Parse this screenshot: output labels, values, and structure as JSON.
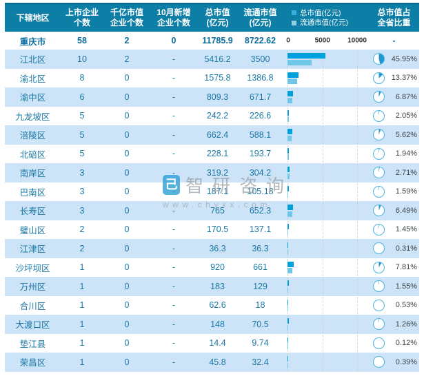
{
  "header": {
    "columns": [
      {
        "label": "下辖地区"
      },
      {
        "line1": "上市企业",
        "line2": "个数"
      },
      {
        "line1": "千亿市值",
        "line2": "企业个数"
      },
      {
        "line1": "10月新增",
        "line2": "企业个数"
      },
      {
        "line1": "总市值",
        "line2": "(亿元)"
      },
      {
        "line1": "流通市值",
        "line2": "(亿元)"
      },
      {
        "line1": "总市值占",
        "line2": "全省比重"
      }
    ],
    "legend": [
      {
        "label": "总市值(亿元)",
        "color": "#35AEE0"
      },
      {
        "label": "流通市值(亿元)",
        "color": "#93CFE3"
      }
    ]
  },
  "axis": {
    "ticks": [
      "0",
      "5000",
      "10000"
    ],
    "max": 10000
  },
  "watermark": {
    "logo_glyph": "己",
    "brand": "智研咨询",
    "url": "www.chyxx.com"
  },
  "colors": {
    "header_bg": "#0D7EA6",
    "row_alt_bg": "#CDE3F7",
    "text_teal": "#1878A5",
    "bar_total": "#00A0DC",
    "bar_circulating": "#70C7E8",
    "pie_fill": "#1E97CE",
    "pie_stroke": "#4AB5E3",
    "percent_text": "#3D4448"
  },
  "chart_data": {
    "type": "table",
    "columns": [
      "下辖地区",
      "上市企业个数",
      "千亿市值企业个数",
      "10月新增企业个数",
      "总市值(亿元)",
      "流通市值(亿元)",
      "总市值占全省比重"
    ],
    "embedded_charts": {
      "bar": {
        "series": [
          "总市值(亿元)",
          "流通市值(亿元)"
        ],
        "axis_ticks": [
          0,
          5000,
          10000
        ],
        "xlim": [
          0,
          10000
        ]
      },
      "pie": {
        "description": "每行圆环表示该区总市值占全省比重(%)"
      }
    },
    "summary_row": {
      "region": "重庆市",
      "listed": 58,
      "hundred_billion": 2,
      "new_oct": 0,
      "total": 11785.9,
      "circulating": 8722.62,
      "share_label": "-"
    },
    "rows": [
      {
        "region": "江北区",
        "listed": 10,
        "hundred_billion": 2,
        "new_oct": "-",
        "total": 5416.2,
        "circulating": 3500,
        "share_pct": 45.95
      },
      {
        "region": "渝北区",
        "listed": 8,
        "hundred_billion": 0,
        "new_oct": "-",
        "total": 1575.8,
        "circulating": 1386.8,
        "share_pct": 13.37
      },
      {
        "region": "渝中区",
        "listed": 6,
        "hundred_billion": 0,
        "new_oct": "-",
        "total": 809.3,
        "circulating": 671.7,
        "share_pct": 6.87
      },
      {
        "region": "九龙坡区",
        "listed": 5,
        "hundred_billion": 0,
        "new_oct": "-",
        "total": 242.2,
        "circulating": 226.6,
        "share_pct": 2.05
      },
      {
        "region": "涪陵区",
        "listed": 5,
        "hundred_billion": 0,
        "new_oct": "-",
        "total": 662.4,
        "circulating": 588.1,
        "share_pct": 5.62
      },
      {
        "region": "北碚区",
        "listed": 5,
        "hundred_billion": 0,
        "new_oct": "-",
        "total": 228.1,
        "circulating": 193.7,
        "share_pct": 1.94
      },
      {
        "region": "南岸区",
        "listed": 3,
        "hundred_billion": 0,
        "new_oct": "-",
        "total": 319.2,
        "circulating": 304.2,
        "share_pct": 2.71
      },
      {
        "region": "巴南区",
        "listed": 3,
        "hundred_billion": 0,
        "new_oct": "-",
        "total": 187.1,
        "circulating": 105.18,
        "share_pct": 1.59
      },
      {
        "region": "长寿区",
        "listed": 3,
        "hundred_billion": 0,
        "new_oct": "-",
        "total": 765,
        "circulating": 652.3,
        "share_pct": 6.49
      },
      {
        "region": "璧山区",
        "listed": 2,
        "hundred_billion": 0,
        "new_oct": "-",
        "total": 170.5,
        "circulating": 137.1,
        "share_pct": 1.45
      },
      {
        "region": "江津区",
        "listed": 2,
        "hundred_billion": 0,
        "new_oct": "-",
        "total": 36.3,
        "circulating": 36.3,
        "share_pct": 0.31
      },
      {
        "region": "沙坪坝区",
        "listed": 1,
        "hundred_billion": 0,
        "new_oct": "-",
        "total": 920,
        "circulating": 661,
        "share_pct": 7.81
      },
      {
        "region": "万州区",
        "listed": 1,
        "hundred_billion": 0,
        "new_oct": "-",
        "total": 183,
        "circulating": 129,
        "share_pct": 1.55
      },
      {
        "region": "合川区",
        "listed": 1,
        "hundred_billion": 0,
        "new_oct": "-",
        "total": 62.6,
        "circulating": 18,
        "share_pct": 0.53
      },
      {
        "region": "大渡口区",
        "listed": 1,
        "hundred_billion": 0,
        "new_oct": "-",
        "total": 148,
        "circulating": 70.5,
        "share_pct": 1.26
      },
      {
        "region": "垫江县",
        "listed": 1,
        "hundred_billion": 0,
        "new_oct": "-",
        "total": 14.4,
        "circulating": 9.74,
        "share_pct": 0.12
      },
      {
        "region": "荣昌区",
        "listed": 1,
        "hundred_billion": 0,
        "new_oct": "-",
        "total": 45.8,
        "circulating": 32.4,
        "share_pct": 0.39
      }
    ]
  }
}
